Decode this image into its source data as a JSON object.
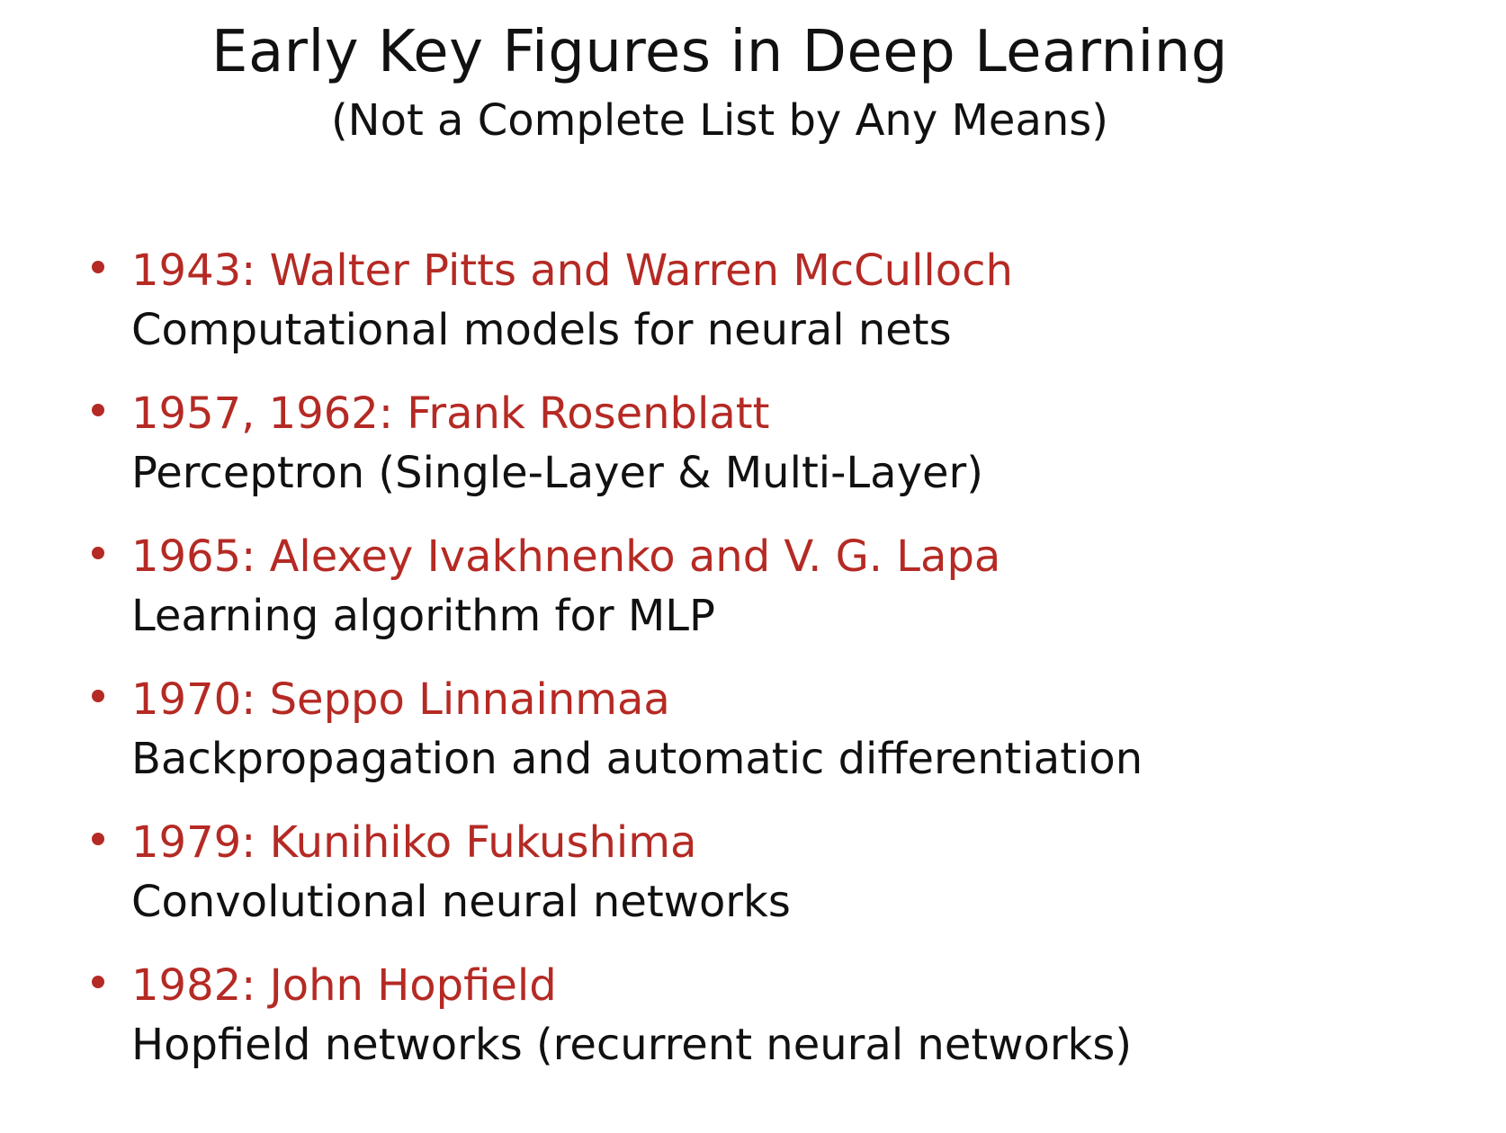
{
  "slide": {
    "title": "Early Key Figures in Deep Learning",
    "subtitle": "(Not a Complete List by Any Means)",
    "items": [
      {
        "heading": "1943: Walter Pitts and Warren McCulloch",
        "description": "Computational models for neural nets"
      },
      {
        "heading": "1957, 1962: Frank Rosenblatt",
        "description": "Perceptron (Single-Layer & Multi-Layer)"
      },
      {
        "heading": "1965: Alexey Ivakhnenko and V. G. Lapa",
        "description": "Learning algorithm for MLP"
      },
      {
        "heading": "1970: Seppo Linnainmaa",
        "description": "Backpropagation and automatic differentiation"
      },
      {
        "heading": "1979: Kunihiko Fukushima",
        "description": "Convolutional neural networks"
      },
      {
        "heading": "1982: John Hopfield",
        "description": "Hopfield networks (recurrent neural networks)"
      }
    ]
  },
  "colors": {
    "heading": "#b52a24",
    "body_text": "#111111",
    "background": "#ffffff"
  }
}
